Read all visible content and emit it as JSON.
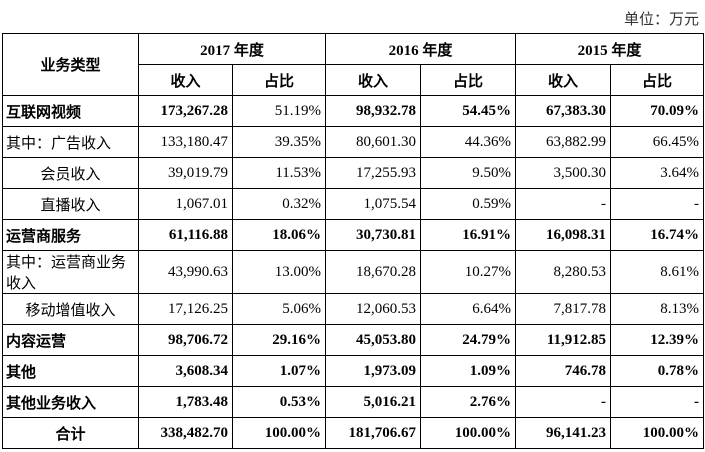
{
  "unit": "单位：万元",
  "table": {
    "header": {
      "category": "业务类型",
      "years": [
        "2017 年度",
        "2016 年度",
        "2015 年度"
      ],
      "sub": [
        "收入",
        "占比",
        "收入",
        "占比",
        "收入",
        "占比"
      ]
    },
    "rows": [
      [
        "互联网视频",
        "173,267.28",
        "51.19%",
        "98,932.78",
        "54.45%",
        "67,383.30",
        "70.09%"
      ],
      [
        "其中：广告收入",
        "133,180.47",
        "39.35%",
        "80,601.30",
        "44.36%",
        "63,882.99",
        "66.45%"
      ],
      [
        "会员收入",
        "39,019.79",
        "11.53%",
        "17,255.93",
        "9.50%",
        "3,500.30",
        "3.64%"
      ],
      [
        "直播收入",
        "1,067.01",
        "0.32%",
        "1,075.54",
        "0.59%",
        "-",
        "-"
      ],
      [
        "运营商服务",
        "61,116.88",
        "18.06%",
        "30,730.81",
        "16.91%",
        "16,098.31",
        "16.74%"
      ],
      [
        "其中：运营商业务收入",
        "43,990.63",
        "13.00%",
        "18,670.28",
        "10.27%",
        "8,280.53",
        "8.61%"
      ],
      [
        "移动增值收入",
        "17,126.25",
        "5.06%",
        "12,060.53",
        "6.64%",
        "7,817.78",
        "8.13%"
      ],
      [
        "内容运营",
        "98,706.72",
        "29.16%",
        "45,053.80",
        "24.79%",
        "11,912.85",
        "12.39%"
      ],
      [
        "其他",
        "3,608.34",
        "1.07%",
        "1,973.09",
        "1.09%",
        "746.78",
        "0.78%"
      ],
      [
        "其他业务收入",
        "1,783.48",
        "0.53%",
        "5,016.21",
        "2.76%",
        "-",
        "-"
      ],
      [
        "合计",
        "338,482.70",
        "100.00%",
        "181,706.67",
        "100.00%",
        "96,141.23",
        "100.00%"
      ]
    ]
  }
}
